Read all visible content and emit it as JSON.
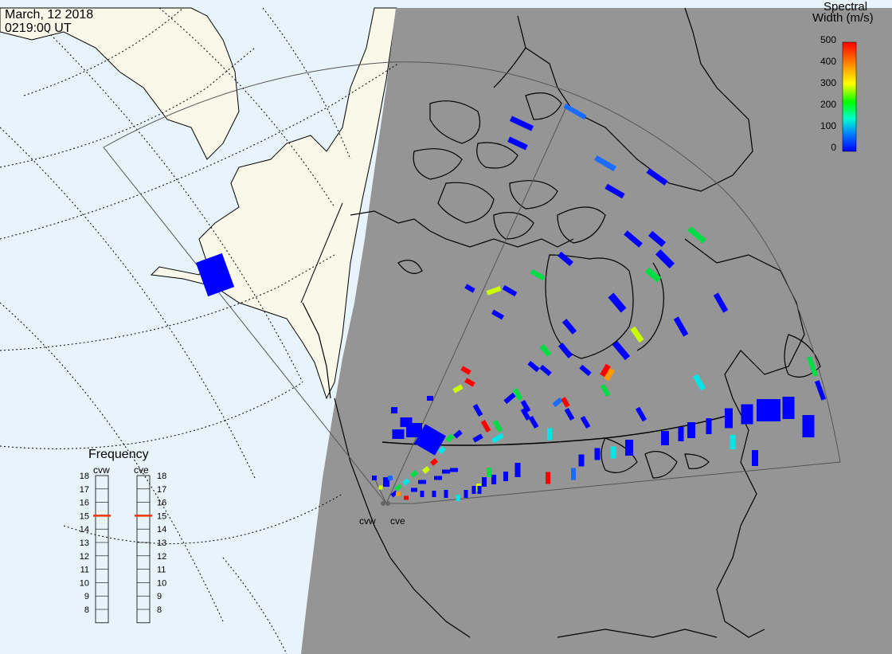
{
  "header": {
    "date": "March, 12 2018",
    "time": "0219:00 UT"
  },
  "colorbar": {
    "title_line1": "Spectral",
    "title_line2": "Width (m/s)",
    "ticks": [
      "500",
      "400",
      "300",
      "200",
      "100",
      "0"
    ],
    "stops": [
      "#0000ff",
      "#00aaff",
      "#00ffcc",
      "#00ff00",
      "#ffff00",
      "#ff8800",
      "#ff0000"
    ]
  },
  "frequency_panel": {
    "title": "Frequency",
    "radar_left": "cvw",
    "radar_right": "cve",
    "ticks": [
      "18",
      "17",
      "16",
      "15",
      "14",
      "13",
      "12",
      "11",
      "10",
      "9",
      "8"
    ],
    "marker_value": "15",
    "marker_color": "#ff3300"
  },
  "radars": {
    "site_labels": [
      "cvw",
      "cve"
    ]
  },
  "colors": {
    "sunlit": "#e8f4fc",
    "night": "#959595",
    "land": "#faf8e9",
    "coast": "#000000"
  }
}
